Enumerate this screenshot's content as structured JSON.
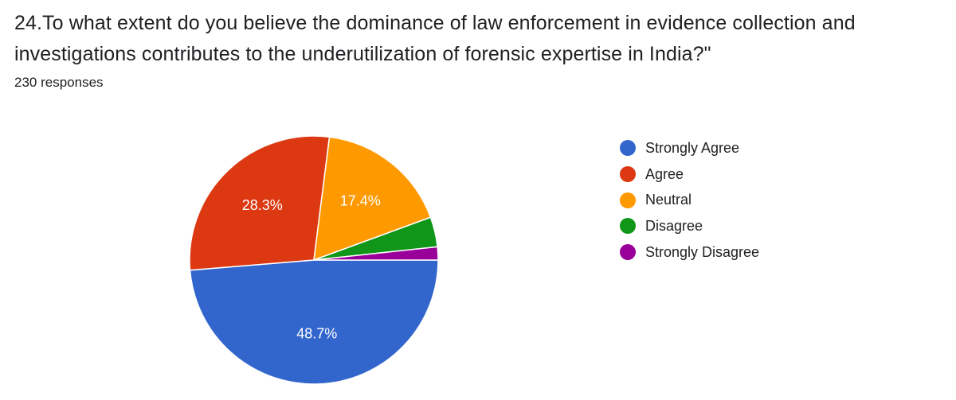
{
  "question": {
    "title": "24.To what extent do you believe the dominance of law enforcement in evidence collection and investigations contributes to the underutilization of forensic expertise in India?\"",
    "responses_label": "230 responses"
  },
  "chart_data": {
    "type": "pie",
    "title": "",
    "total_responses": 230,
    "legend_position": "right",
    "slices": [
      {
        "label": "Strongly Agree",
        "value": 48.7,
        "display": "48.7%",
        "color": "#3366cc"
      },
      {
        "label": "Agree",
        "value": 28.3,
        "display": "28.3%",
        "color": "#dc3912"
      },
      {
        "label": "Neutral",
        "value": 17.4,
        "display": "17.4%",
        "color": "#ff9900"
      },
      {
        "label": "Disagree",
        "value": 3.9,
        "display": "",
        "color": "#109618"
      },
      {
        "label": "Strongly Disagree",
        "value": 1.7,
        "display": "",
        "color": "#990099"
      }
    ]
  }
}
